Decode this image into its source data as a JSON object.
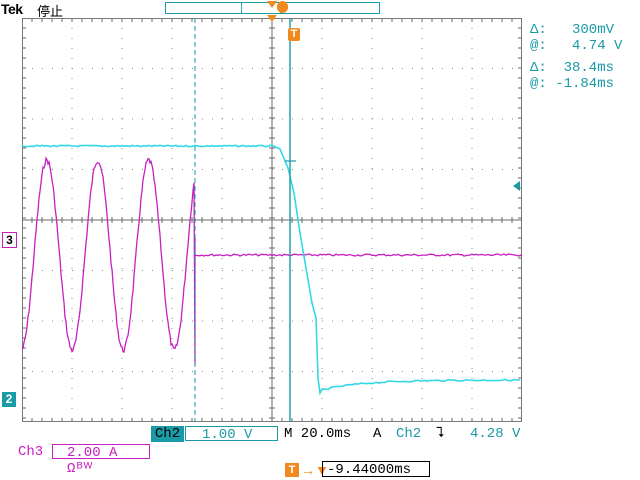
{
  "brand": "Tek",
  "status": "停止",
  "readouts": {
    "volt_delta": "Δ:   300mV",
    "volt_at": "@:   4.74 V",
    "time_delta": "Δ:  38.4ms",
    "time_at": "@: -1.84ms"
  },
  "bottom": {
    "ch2_label": "Ch2",
    "ch2_scale": "1.00 V",
    "timebase": "M 20.0ms",
    "trigger_label": "A",
    "trigger_source": "Ch2",
    "trigger_slope": "⮧",
    "trigger_level": "4.28 V",
    "ch3_label": "Ch3",
    "ch3_scale": "2.00 A Ωᴮᵂ",
    "horizontal_position": "-9.44000ms",
    "position_icon": "T",
    "position_arrow": "→▼"
  },
  "markers": {
    "ch3": "3",
    "ch2": "2",
    "trigger": "T"
  },
  "colors": {
    "ch2": "#1a9aa6",
    "ch3": "#c91fc0",
    "trigger": "#f08a1e"
  }
}
